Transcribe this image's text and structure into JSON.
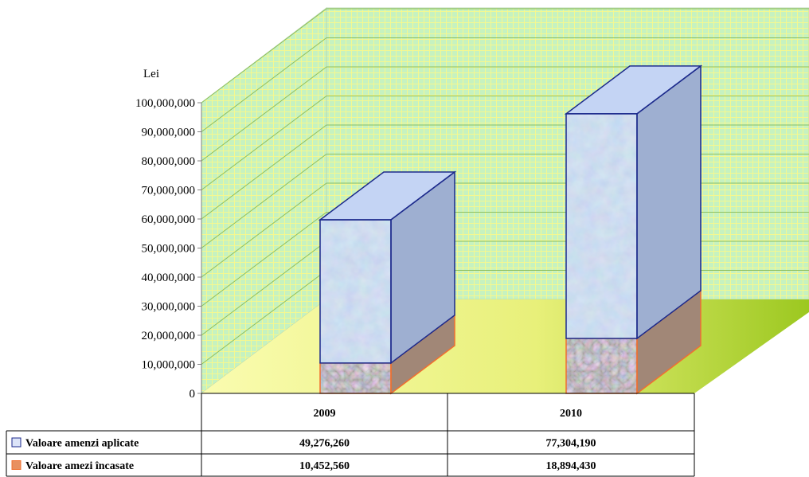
{
  "chart_data": {
    "type": "bar",
    "stacked": true,
    "ylabel": "Lei",
    "categories": [
      "2009",
      "2010"
    ],
    "ylim": [
      0,
      100000000
    ],
    "yticks": [
      0,
      10000000,
      20000000,
      30000000,
      40000000,
      50000000,
      60000000,
      70000000,
      80000000,
      90000000,
      100000000
    ],
    "ytick_labels": [
      "0",
      "10,000,000",
      "20,000,000",
      "30,000,000",
      "40,000,000",
      "50,000,000",
      "60,000,000",
      "70,000,000",
      "80,000,000",
      "90,000,000",
      "100,000,000"
    ],
    "series": [
      {
        "name": "Valoare amezi încasate",
        "values": [
          10452560,
          18894430
        ],
        "value_labels": [
          "10,452,560",
          "18,894,430"
        ],
        "color": "#f07030"
      },
      {
        "name": "Valoare amenzi aplicate",
        "values": [
          49276260,
          77304190
        ],
        "value_labels": [
          "49,276,260",
          "77,304,190"
        ],
        "color": "#1c2a8c"
      }
    ],
    "grid": true,
    "legend": "data-table"
  }
}
